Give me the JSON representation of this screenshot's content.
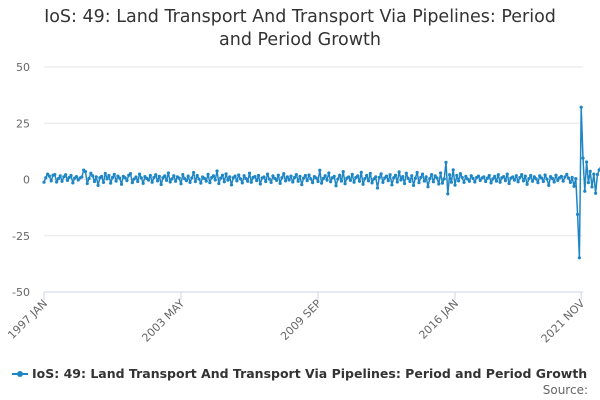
{
  "title": {
    "line1": "IoS: 49: Land Transport And Transport Via Pipelines: Period",
    "line2": "and Period Growth"
  },
  "legend": {
    "label": "IoS: 49: Land Transport And Transport Via Pipelines: Period and Period Growth"
  },
  "source": "Source:",
  "colors": {
    "series": "#1f86c4",
    "grid": "#e6e6e6",
    "axis": "#ccd6eb"
  },
  "chart_data": {
    "type": "line",
    "title": "IoS: 49: Land Transport And Transport Via Pipelines: Period and Period Growth",
    "xlabel": "",
    "ylabel": "",
    "ylim": [
      -50,
      50
    ],
    "yticks": [
      50,
      25,
      0,
      -25,
      -50
    ],
    "xrange": [
      "1997 JAN",
      "2021 DEC"
    ],
    "xtick_labels": [
      {
        "label": "1997 JAN",
        "date": "1997-01"
      },
      {
        "label": "2003 MAY",
        "date": "2003-05"
      },
      {
        "label": "2009 SEP",
        "date": "2009-09"
      },
      {
        "label": "2016 JAN",
        "date": "2016-01"
      },
      {
        "label": "2021 NOV",
        "date": "2021-11"
      }
    ],
    "grid": true,
    "legend_position": "bottom",
    "series": [
      {
        "name": "IoS: 49: Land Transport And Transport Via Pipelines: Period and Period Growth",
        "monthly_start": "1997-01",
        "values": [
          -1.2,
          0.8,
          2.4,
          1.5,
          -0.6,
          1.9,
          2.2,
          -1.1,
          0.4,
          1.6,
          -0.8,
          1.2,
          2.1,
          -0.4,
          0.9,
          1.8,
          -1.5,
          0.6,
          1.3,
          -0.2,
          0.7,
          1.1,
          4.2,
          3.5,
          -1.8,
          0.5,
          2.8,
          1.6,
          -0.9,
          1.2,
          -2.6,
          0.8,
          1.4,
          -1.3,
          2.7,
          0.3,
          1.8,
          -1.6,
          0.9,
          2.3,
          -0.7,
          1.5,
          0.6,
          -2.1,
          1.4,
          0.8,
          -0.5,
          1.9,
          2.6,
          -1.4,
          0.2,
          1.1,
          -0.9,
          2.4,
          0.7,
          -1.7,
          1.3,
          0.5,
          -0.3,
          1.8,
          -1.2,
          0.9,
          2.1,
          -0.6,
          1.4,
          -2.2,
          0.8,
          1.6,
          -0.4,
          2.9,
          -1.1,
          0.3,
          1.7,
          -0.8,
          1.2,
          0.6,
          -1.9,
          2.2,
          0.4,
          -0.5,
          1.5,
          -1.3,
          0.7,
          3.1,
          -0.9,
          1.8,
          0.2,
          -1.6,
          1.1,
          0.5,
          -0.7,
          2.3,
          -1.4,
          0.9,
          1.6,
          -0.2,
          3.8,
          -1.8,
          0.6,
          1.9,
          -1.0,
          2.5,
          -0.3,
          1.2,
          -2.4,
          0.8,
          1.5,
          -0.6,
          2.0,
          0.3,
          -1.5,
          1.7,
          0.4,
          -0.8,
          2.8,
          -1.2,
          0.9,
          1.3,
          -0.5,
          1.8,
          -2.0,
          0.7,
          1.1,
          -0.9,
          2.4,
          0.2,
          -1.3,
          1.6,
          0.5,
          -0.4,
          1.9,
          -1.7,
          0.8,
          2.6,
          -0.6,
          1.2,
          -0.2,
          1.5,
          -1.1,
          0.9,
          2.2,
          -0.8,
          1.4,
          -2.3,
          0.6,
          1.8,
          -0.5,
          2.0,
          0.3,
          -1.4,
          1.3,
          0.7,
          -0.9,
          4.1,
          -1.6,
          0.5,
          1.7,
          -0.3,
          2.9,
          -1.0,
          0.8,
          1.4,
          -2.8,
          0.2,
          1.9,
          -0.7,
          3.5,
          -1.9,
          0.6,
          1.1,
          -0.4,
          2.3,
          -1.2,
          0.9,
          1.6,
          -0.8,
          3.2,
          -2.1,
          0.4,
          1.8,
          -0.6,
          2.7,
          -1.5,
          0.3,
          1.2,
          -3.8,
          0.9,
          2.5,
          -1.3,
          0.7,
          1.5,
          -0.5,
          2.1,
          -2.4,
          0.8,
          1.9,
          -1.1,
          3.4,
          -0.2,
          1.3,
          -1.8,
          2.8,
          0.5,
          -0.9,
          1.7,
          -2.6,
          0.6,
          3.1,
          -1.4,
          0.9,
          2.4,
          -0.7,
          1.2,
          -3.2,
          0.4,
          2.2,
          -1.0,
          1.6,
          0.7,
          -2.0,
          2.9,
          -1.6,
          0.3,
          7.6,
          -6.4,
          2.1,
          -1.2,
          4.3,
          -2.5,
          1.8,
          -0.6,
          2.6,
          0.9,
          -1.3,
          1.4,
          0.2,
          -0.8,
          1.7,
          0.5,
          -1.1,
          0.9,
          1.5,
          -0.4,
          0.7,
          1.2,
          -0.9,
          0.6,
          1.8,
          -1.5,
          0.3,
          1.4,
          -0.7,
          2.1,
          -1.2,
          0.8,
          1.3,
          -0.5,
          2.4,
          -1.8,
          0.6,
          1.1,
          -0.3,
          1.7,
          -1.0,
          0.9,
          2.2,
          -0.6,
          1.5,
          -2.1,
          0.4,
          1.8,
          -0.8,
          1.2,
          0.3,
          -1.4,
          1.6,
          0.7,
          -0.9,
          2.0,
          0.2,
          -2.6,
          1.3,
          0.5,
          -1.1,
          1.9,
          -0.4,
          0.8,
          1.4,
          -0.7,
          1.1,
          2.3,
          0.6,
          -1.3,
          0.9,
          -3.0,
          0.4,
          -15.5,
          -34.8,
          32.1,
          9.5,
          -5.2,
          7.8,
          -1.4,
          3.6,
          -3.3,
          2.4,
          -6.1,
          2.2,
          4.3,
          5.1,
          3.2,
          1.9,
          2.8,
          4.4,
          7.4,
          2.3
        ]
      }
    ]
  }
}
